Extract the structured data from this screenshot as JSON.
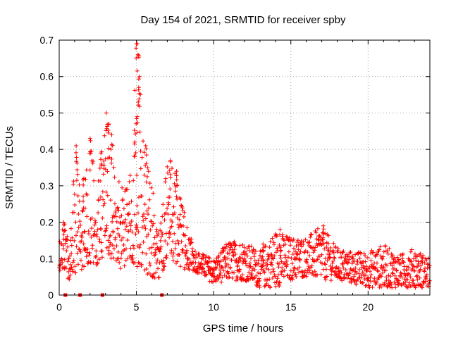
{
  "chart_data": {
    "type": "scatter",
    "title": "Day 154 of 2021, SRMTID for receiver spby",
    "xlabel": "GPS time / hours",
    "ylabel": "SRMTID / TECUs",
    "xlim": [
      0,
      24
    ],
    "ylim": [
      0,
      0.7
    ],
    "xticks": [
      0,
      5,
      10,
      15,
      20
    ],
    "yticks": [
      0,
      0.1,
      0.2,
      0.3,
      0.4,
      0.5,
      0.6,
      0.7
    ],
    "grid": true,
    "marker": "+",
    "series_color": "#ff0000",
    "series": [
      {
        "name": "SRMTID",
        "envelope": [
          {
            "x": 0.0,
            "low": 0.07,
            "high": 0.15
          },
          {
            "x": 0.4,
            "low": 0.05,
            "high": 0.21
          },
          {
            "x": 0.7,
            "low": 0.04,
            "high": 0.12
          },
          {
            "x": 1.0,
            "low": 0.06,
            "high": 0.41
          },
          {
            "x": 1.5,
            "low": 0.07,
            "high": 0.24
          },
          {
            "x": 2.0,
            "low": 0.09,
            "high": 0.43
          },
          {
            "x": 2.5,
            "low": 0.08,
            "high": 0.32
          },
          {
            "x": 3.0,
            "low": 0.1,
            "high": 0.5
          },
          {
            "x": 3.5,
            "low": 0.08,
            "high": 0.36
          },
          {
            "x": 4.0,
            "low": 0.07,
            "high": 0.3
          },
          {
            "x": 4.5,
            "low": 0.09,
            "high": 0.3
          },
          {
            "x": 5.0,
            "low": 0.08,
            "high": 0.69
          },
          {
            "x": 5.5,
            "low": 0.06,
            "high": 0.4
          },
          {
            "x": 6.0,
            "low": 0.05,
            "high": 0.3
          },
          {
            "x": 6.5,
            "low": 0.04,
            "high": 0.22
          },
          {
            "x": 7.0,
            "low": 0.1,
            "high": 0.37
          },
          {
            "x": 7.5,
            "low": 0.09,
            "high": 0.34
          },
          {
            "x": 8.0,
            "low": 0.07,
            "high": 0.25
          },
          {
            "x": 8.5,
            "low": 0.07,
            "high": 0.16
          },
          {
            "x": 9.0,
            "low": 0.06,
            "high": 0.12
          },
          {
            "x": 10.0,
            "low": 0.03,
            "high": 0.1
          },
          {
            "x": 11.0,
            "low": 0.04,
            "high": 0.15
          },
          {
            "x": 12.0,
            "low": 0.04,
            "high": 0.15
          },
          {
            "x": 13.0,
            "low": 0.02,
            "high": 0.12
          },
          {
            "x": 14.0,
            "low": 0.02,
            "high": 0.18
          },
          {
            "x": 15.0,
            "low": 0.04,
            "high": 0.16
          },
          {
            "x": 16.0,
            "low": 0.05,
            "high": 0.16
          },
          {
            "x": 17.0,
            "low": 0.04,
            "high": 0.19
          },
          {
            "x": 18.0,
            "low": 0.04,
            "high": 0.13
          },
          {
            "x": 19.0,
            "low": 0.03,
            "high": 0.12
          },
          {
            "x": 20.0,
            "low": 0.02,
            "high": 0.12
          },
          {
            "x": 21.0,
            "low": 0.02,
            "high": 0.14
          },
          {
            "x": 22.0,
            "low": 0.02,
            "high": 0.11
          },
          {
            "x": 23.0,
            "low": 0.02,
            "high": 0.13
          },
          {
            "x": 24.0,
            "low": 0.02,
            "high": 0.1
          }
        ],
        "peaks": [
          {
            "x": 0.3,
            "y": 0.2
          },
          {
            "x": 1.1,
            "y": 0.41
          },
          {
            "x": 1.6,
            "y": 0.32
          },
          {
            "x": 2.0,
            "y": 0.43
          },
          {
            "x": 2.7,
            "y": 0.39
          },
          {
            "x": 3.05,
            "y": 0.5
          },
          {
            "x": 3.2,
            "y": 0.47
          },
          {
            "x": 3.4,
            "y": 0.44
          },
          {
            "x": 4.9,
            "y": 0.42
          },
          {
            "x": 5.0,
            "y": 0.69
          },
          {
            "x": 5.1,
            "y": 0.66
          },
          {
            "x": 5.2,
            "y": 0.6
          },
          {
            "x": 5.15,
            "y": 0.57
          },
          {
            "x": 5.05,
            "y": 0.49
          },
          {
            "x": 5.6,
            "y": 0.41
          },
          {
            "x": 7.2,
            "y": 0.37
          },
          {
            "x": 7.6,
            "y": 0.34
          },
          {
            "x": 13.2,
            "y": 0.14
          },
          {
            "x": 14.3,
            "y": 0.18
          },
          {
            "x": 17.1,
            "y": 0.19
          }
        ]
      },
      {
        "name": "gap markers",
        "marker": "square",
        "points": [
          {
            "x": 0.4,
            "y": 0
          },
          {
            "x": 1.35,
            "y": 0
          },
          {
            "x": 2.8,
            "y": 0
          },
          {
            "x": 6.65,
            "y": 0
          }
        ]
      }
    ]
  }
}
